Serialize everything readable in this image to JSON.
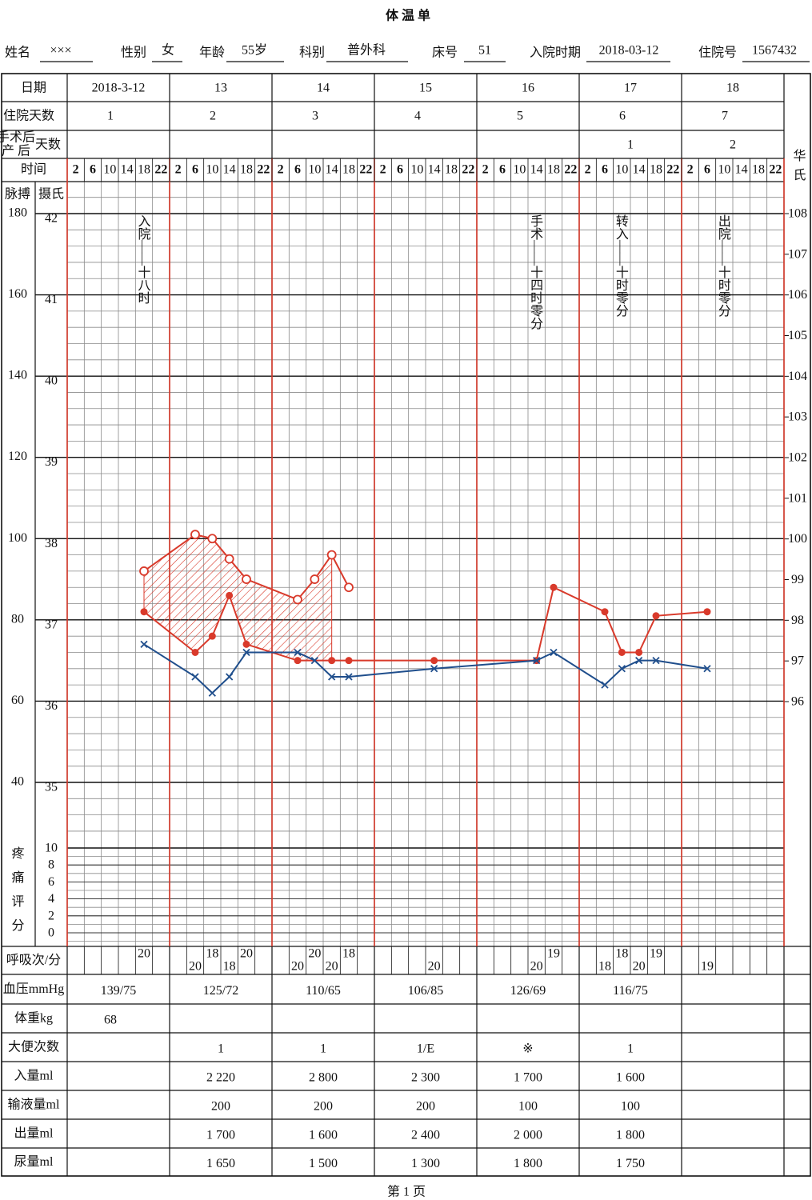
{
  "title": "体 温 单",
  "header": {
    "fields": [
      {
        "label": "姓名",
        "value": "×××"
      },
      {
        "label": "性别",
        "value": "女"
      },
      {
        "label": "年龄",
        "value": "55岁"
      },
      {
        "label": "科别",
        "value": "普外科"
      },
      {
        "label": "床号",
        "value": "51"
      },
      {
        "label": "入院时期",
        "value": "2018-03-12"
      },
      {
        "label": "住院号",
        "value": "1567432"
      }
    ]
  },
  "row_labels": {
    "date": "日期",
    "hospital_day": "住院天数",
    "postop_day": [
      "手术后",
      "产 后",
      "天数"
    ],
    "time": "时间",
    "respiration": "呼吸次/分",
    "blood_pressure": "血压mmHg",
    "weight": "体重kg",
    "stool": "大便次数",
    "intake": "入量ml",
    "infusion": "输液量ml",
    "output": "出量ml",
    "urine": "尿量ml"
  },
  "time_slots": [
    2,
    6,
    10,
    14,
    18,
    22
  ],
  "days": [
    {
      "date": "2018-3-12",
      "hospital_day": 1,
      "postop_day": null,
      "blood_pressure": "139/75",
      "weight": "68",
      "stool": null,
      "intake": null,
      "infusion": null,
      "output": null,
      "urine": null
    },
    {
      "date": "13",
      "hospital_day": 2,
      "postop_day": null,
      "blood_pressure": "125/72",
      "weight": null,
      "stool": "1",
      "intake": "2 220",
      "infusion": "200",
      "output": "1 700",
      "urine": "1 650"
    },
    {
      "date": "14",
      "hospital_day": 3,
      "postop_day": null,
      "blood_pressure": "110/65",
      "weight": null,
      "stool": "1",
      "intake": "2 800",
      "infusion": "200",
      "output": "1 600",
      "urine": "1 500"
    },
    {
      "date": "15",
      "hospital_day": 4,
      "postop_day": null,
      "blood_pressure": "106/85",
      "weight": null,
      "stool": "1/E",
      "intake": "2 300",
      "infusion": "200",
      "output": "2 400",
      "urine": "1 300"
    },
    {
      "date": "16",
      "hospital_day": 5,
      "postop_day": null,
      "blood_pressure": "126/69",
      "weight": null,
      "stool": "※",
      "intake": "1 700",
      "infusion": "100",
      "output": "2 000",
      "urine": "1 800"
    },
    {
      "date": "17",
      "hospital_day": 6,
      "postop_day": 1,
      "blood_pressure": "116/75",
      "weight": null,
      "stool": "1",
      "intake": "1 600",
      "infusion": "100",
      "output": "1 800",
      "urine": "1 750"
    },
    {
      "date": "18",
      "hospital_day": 7,
      "postop_day": 2,
      "blood_pressure": null,
      "weight": null,
      "stool": null,
      "intake": null,
      "infusion": null,
      "output": null,
      "urine": null
    }
  ],
  "chart": {
    "xlim": [
      0,
      168
    ],
    "pulse_axis": {
      "label": "脉搏",
      "lim": [
        40,
        180
      ],
      "ticks": [
        180,
        160,
        140,
        120,
        100,
        80,
        60,
        40
      ]
    },
    "celsius_axis": {
      "label": "摄氏",
      "lim": [
        35,
        42
      ],
      "ticks": [
        42,
        41,
        40,
        39,
        38,
        37,
        36,
        35
      ]
    },
    "fahrenheit_axis": {
      "label": "华氏",
      "lim": [
        96,
        108
      ],
      "ticks": [
        108,
        107,
        106,
        105,
        104,
        103,
        102,
        101,
        100,
        99,
        98,
        97,
        96
      ]
    },
    "pain_axis": {
      "label": "疼痛评分",
      "lim": [
        0,
        10
      ],
      "ticks": [
        10,
        8,
        6,
        4,
        2,
        0
      ]
    },
    "annotations": [
      {
        "text": "入院——十八时",
        "hour": 18
      },
      {
        "text": "手术——十四时零分",
        "hour": 110
      },
      {
        "text": "转入——十时零分",
        "hour": 130
      },
      {
        "text": "出院——十时零分",
        "hour": 154
      }
    ],
    "heart_rate": {
      "color": "#d93a2b",
      "hours": [
        18,
        30,
        34,
        38,
        42,
        54,
        58,
        62,
        66
      ],
      "values": [
        92,
        101,
        100,
        95,
        90,
        85,
        90,
        96,
        88
      ]
    },
    "pulse": {
      "color": "#d93a2b",
      "hours": [
        18,
        30,
        34,
        38,
        42,
        54,
        62,
        66,
        86,
        110,
        114,
        126,
        130,
        134,
        138,
        150
      ],
      "values": [
        82,
        72,
        76,
        86,
        74,
        70,
        70,
        70,
        70,
        70,
        88,
        82,
        72,
        72,
        81,
        82
      ]
    },
    "temperature": {
      "color": "#1f4e8c",
      "hours": [
        18,
        30,
        34,
        38,
        42,
        54,
        58,
        62,
        66,
        86,
        110,
        114,
        126,
        130,
        134,
        138,
        150
      ],
      "values": [
        36.7,
        36.3,
        36.1,
        36.3,
        36.6,
        36.6,
        36.5,
        36.3,
        36.3,
        36.4,
        36.5,
        36.6,
        36.2,
        36.4,
        36.5,
        36.5,
        36.4
      ]
    },
    "respiration": {
      "hours": [
        18,
        30,
        34,
        38,
        42,
        54,
        58,
        62,
        66,
        86,
        110,
        114,
        126,
        130,
        134,
        138,
        150
      ],
      "values": [
        20,
        20,
        18,
        18,
        20,
        20,
        20,
        20,
        18,
        20,
        20,
        19,
        18,
        18,
        20,
        19,
        19
      ]
    }
  },
  "footer": "第 1 页"
}
